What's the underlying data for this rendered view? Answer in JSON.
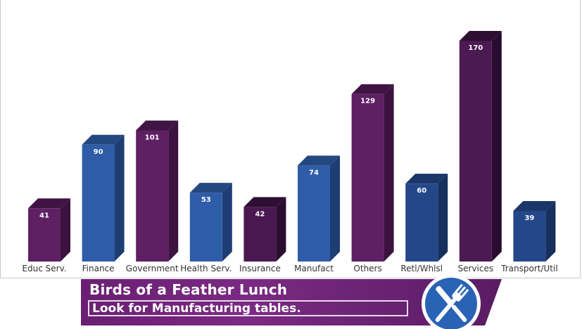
{
  "chart_data": {
    "type": "bar",
    "categories": [
      "Educ Serv.",
      "Finance",
      "Government",
      "Health Serv.",
      "Insurance",
      "Manufact",
      "Others",
      "Retl/Whlsl",
      "Services",
      "Transport/Util"
    ],
    "values": [
      41,
      90,
      101,
      53,
      42,
      74,
      129,
      60,
      170,
      39
    ],
    "bar_colors": [
      "#5e2063",
      "#2f5ca8",
      "#5e2063",
      "#2f5ca8",
      "#4a1850",
      "#2f5ca8",
      "#5e2063",
      "#24478a",
      "#4b1a52",
      "#24478a"
    ],
    "side_colors": [
      "#3b1240",
      "#1e3d73",
      "#3b1240",
      "#1e3d73",
      "#2c0d31",
      "#1e3d73",
      "#3b1240",
      "#162f5c",
      "#2a0c30",
      "#162f5c"
    ],
    "top_colors": [
      "#3f1444",
      "#24477f",
      "#3f1444",
      "#24477f",
      "#2e0f33",
      "#24477f",
      "#3f1444",
      "#1b3669",
      "#2e0f33",
      "#1b3669"
    ],
    "title": "",
    "xlabel": "",
    "ylabel": "",
    "ylim": [
      0,
      170
    ],
    "grid": false,
    "legend": "none",
    "style": "3d-bars-with-value-labels"
  },
  "banner": {
    "title": "Birds of a Feather Lunch",
    "subtitle": "Look for Manufacturing tables."
  },
  "badge": {
    "icon": "fork-knife-icon",
    "circle_color": "#2a63b5",
    "ring_color": "#ffffff"
  }
}
